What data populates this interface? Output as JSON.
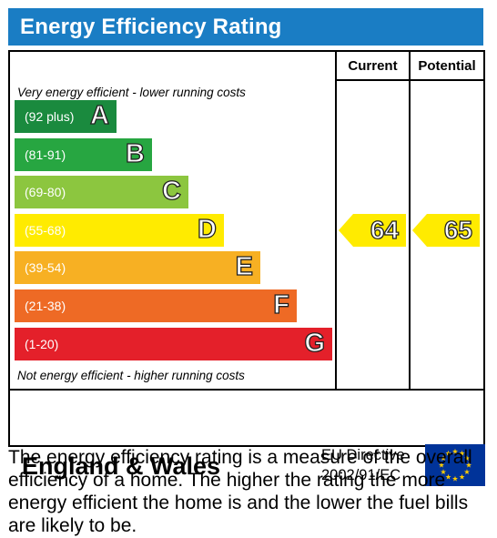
{
  "header": {
    "title": "Energy Efficiency Rating"
  },
  "columns": {
    "current": "Current",
    "potential": "Potential"
  },
  "notes": {
    "top": "Very energy efficient - lower running costs",
    "bottom": "Not energy efficient - higher running costs"
  },
  "chart_data": {
    "type": "bar",
    "bands": [
      {
        "letter": "A",
        "range": "(92 plus)",
        "color": "#1a8a3e"
      },
      {
        "letter": "B",
        "range": "(81-91)",
        "color": "#27a641"
      },
      {
        "letter": "C",
        "range": "(69-80)",
        "color": "#8cc63f"
      },
      {
        "letter": "D",
        "range": "(55-68)",
        "color": "#ffeb00"
      },
      {
        "letter": "E",
        "range": "(39-54)",
        "color": "#f7b023"
      },
      {
        "letter": "F",
        "range": "(21-38)",
        "color": "#ee6a25"
      },
      {
        "letter": "G",
        "range": "(1-20)",
        "color": "#e4202a"
      }
    ],
    "ratings": {
      "current": {
        "value": 64,
        "band": "D",
        "color": "#ffeb00"
      },
      "potential": {
        "value": 65,
        "band": "D",
        "color": "#ffeb00"
      }
    }
  },
  "footer": {
    "region": "England & Wales",
    "directive_line1": "EU Directive",
    "directive_line2": "2002/91/EC"
  },
  "description": "The energy efficiency rating is a measure of the overall efficiency of a home. The higher the rating the more energy efficient the home is and the lower the fuel bills are likely to be."
}
